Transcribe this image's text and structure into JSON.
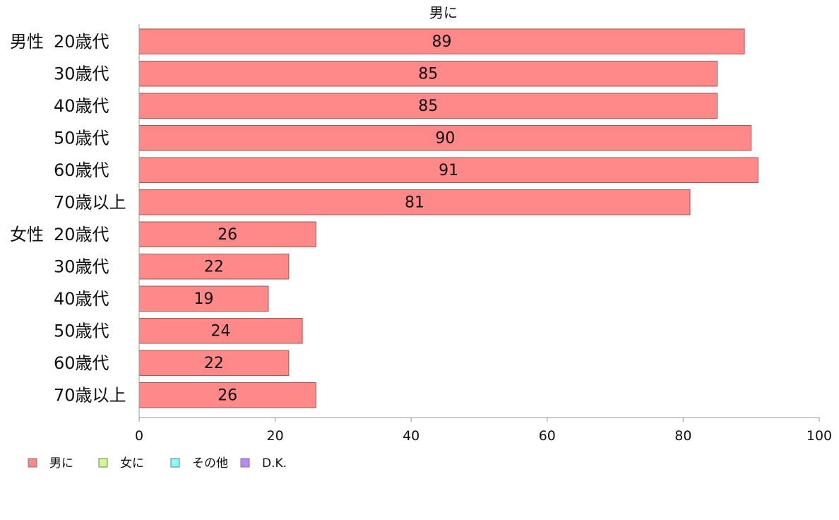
{
  "chart_data": {
    "type": "bar",
    "orientation": "horizontal",
    "title": "男に",
    "groups": [
      {
        "label": "男性",
        "categories": [
          "20歳代",
          "30歳代",
          "40歳代",
          "50歳代",
          "60歳代",
          "70歳以上"
        ],
        "values": [
          89,
          85,
          85,
          90,
          91,
          81
        ]
      },
      {
        "label": "女性",
        "categories": [
          "20歳代",
          "30歳代",
          "40歳代",
          "50歳代",
          "60歳代",
          "70歳以上"
        ],
        "values": [
          26,
          22,
          19,
          24,
          22,
          26
        ]
      }
    ],
    "xlim": [
      0,
      100
    ],
    "xticks": [
      0,
      20,
      40,
      60,
      80,
      100
    ],
    "grid": false,
    "legend": {
      "placement": "bottom-left",
      "entries": [
        {
          "label": "男に",
          "color": "#ff8888"
        },
        {
          "label": "女に",
          "color": "#ccff88"
        },
        {
          "label": "その他",
          "color": "#88ffff"
        },
        {
          "label": "D.K.",
          "color": "#bb88ff"
        }
      ]
    },
    "bar_color": "#ff8888"
  }
}
